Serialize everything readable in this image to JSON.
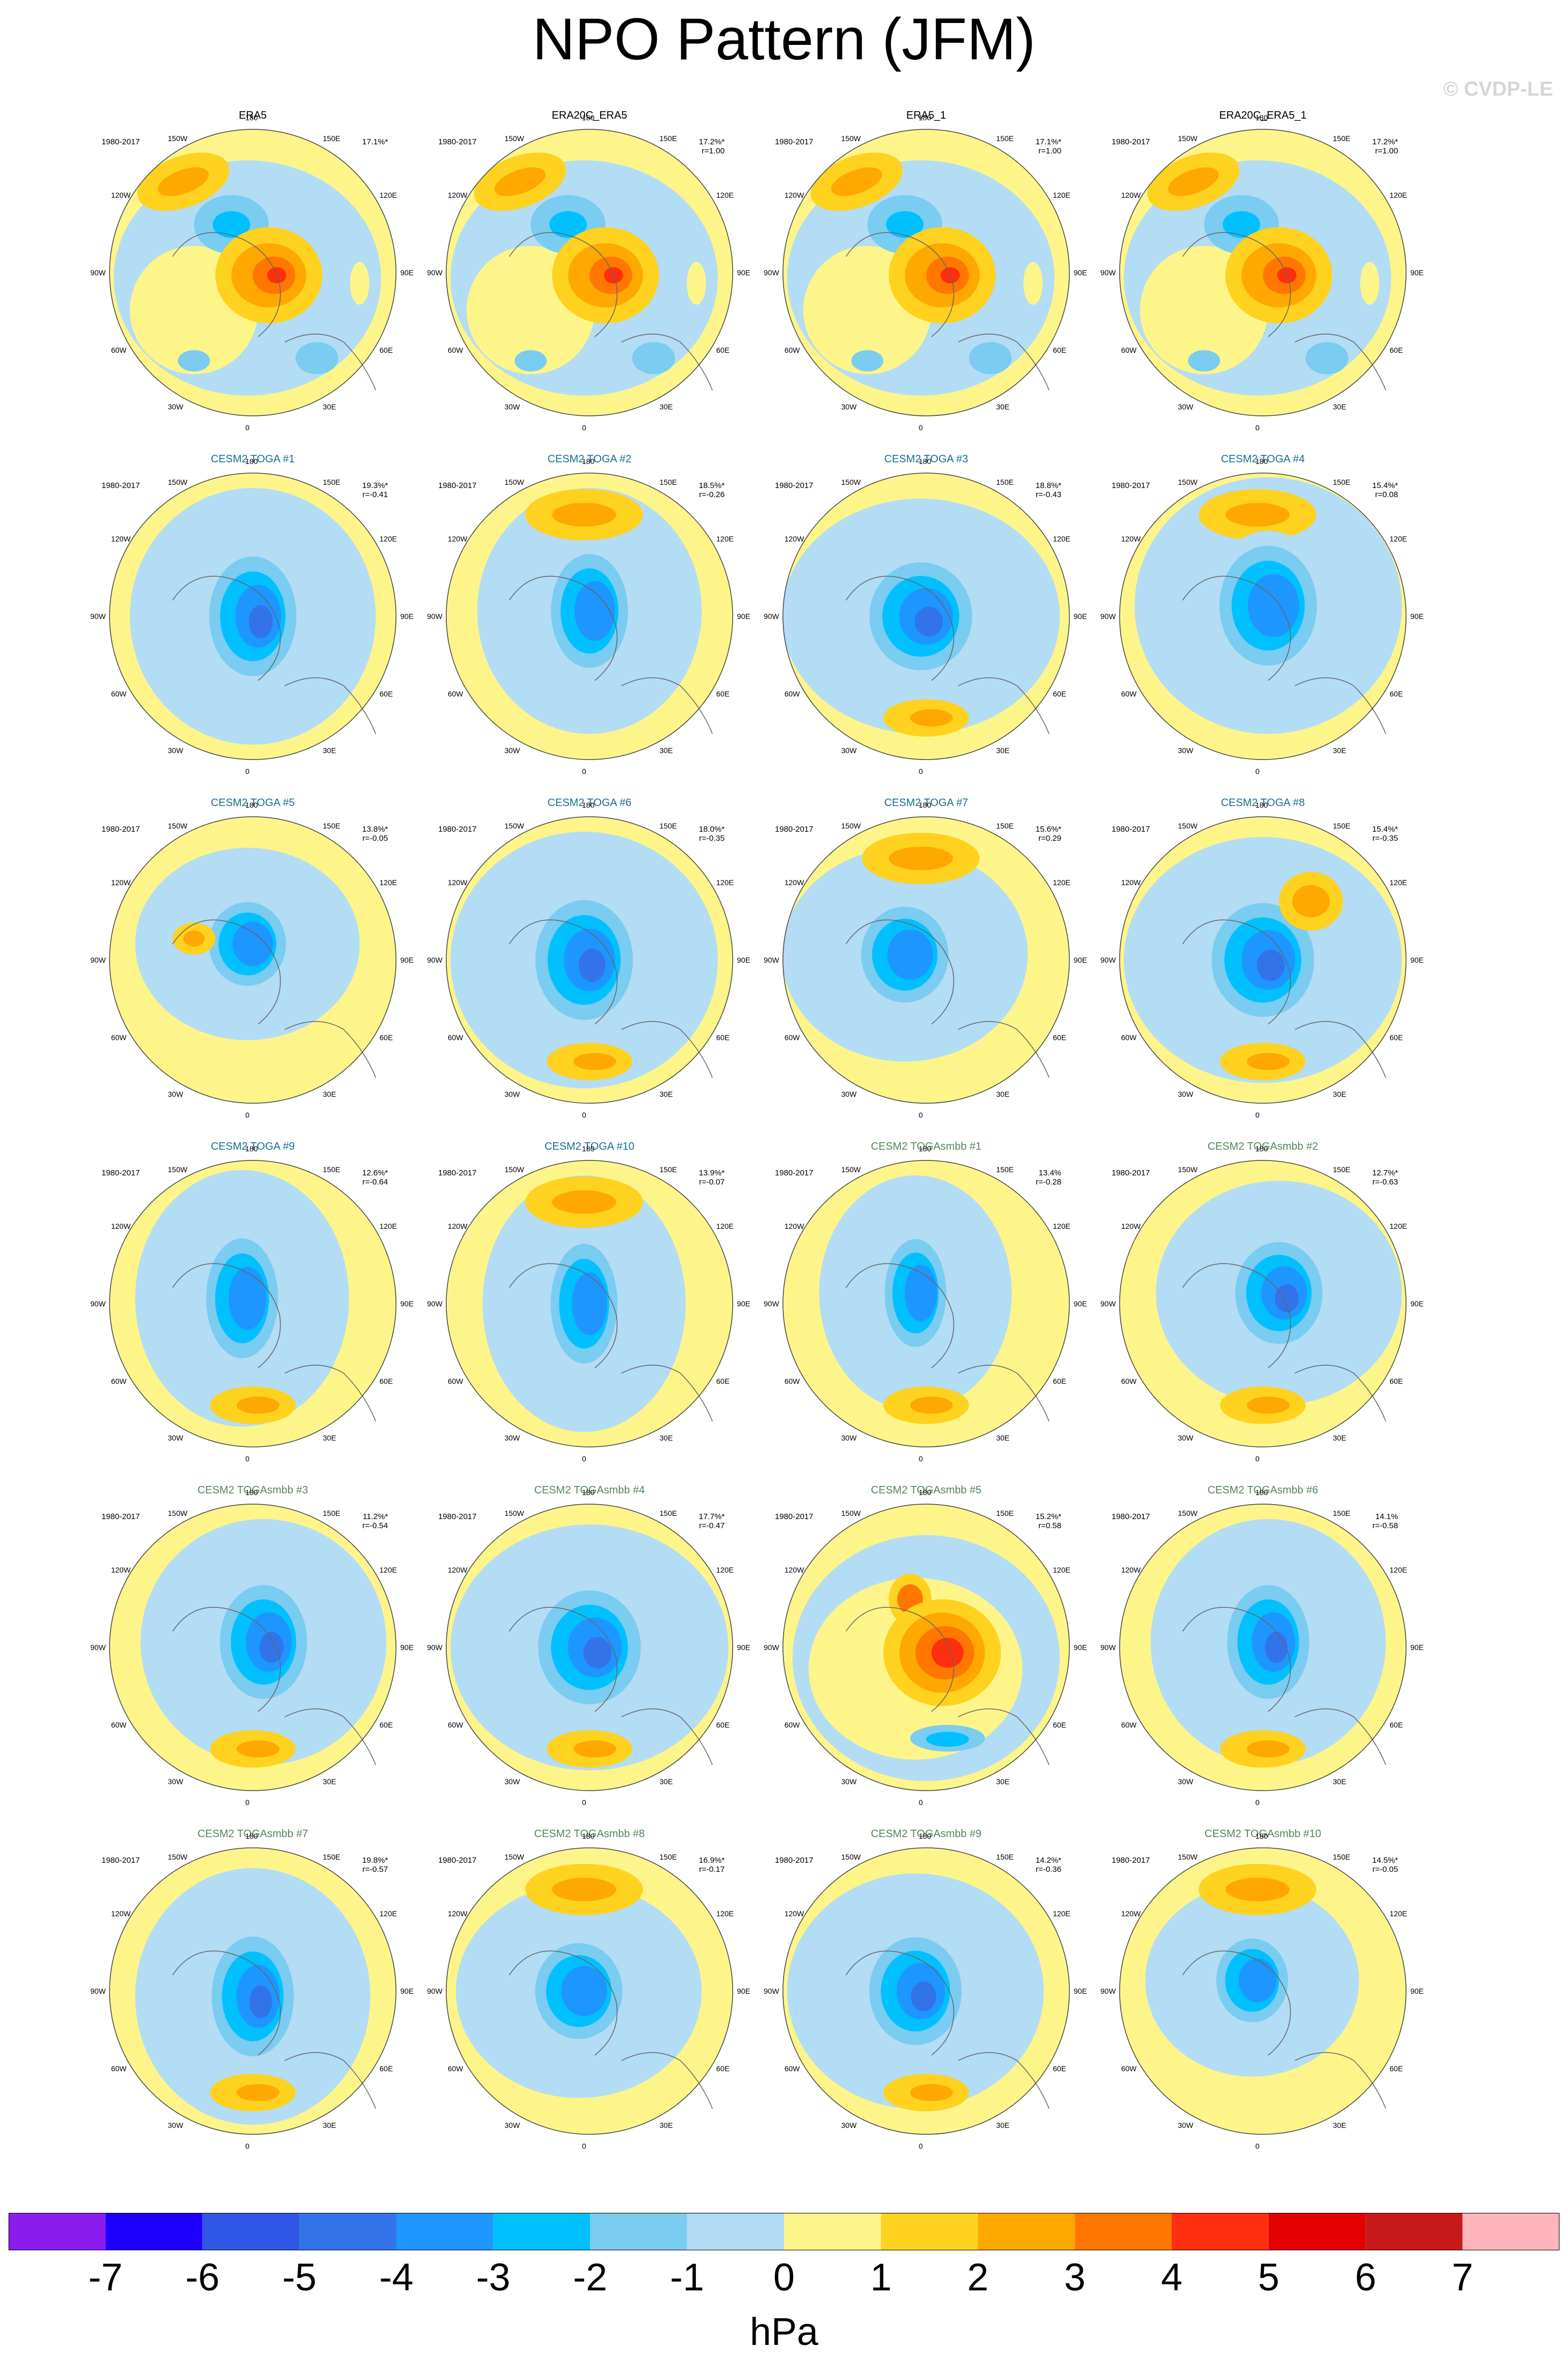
{
  "title": "NPO Pattern (JFM)",
  "watermark": "© CVDP-LE",
  "chart_data": {
    "type": "polar-contour-map-grid",
    "rows": 6,
    "cols": 4,
    "period": "1980-2017",
    "lon_labels": [
      "180",
      "150E",
      "120E",
      "90E",
      "60E",
      "30E",
      "0",
      "30W",
      "60W",
      "90W",
      "120W",
      "150W"
    ],
    "panels": [
      {
        "title": "ERA5",
        "group": "obs",
        "pct": "17.1%*",
        "r": ""
      },
      {
        "title": "ERA20C_ERA5",
        "group": "obs",
        "pct": "17.2%*",
        "r": "r=1.00"
      },
      {
        "title": "ERA5_1",
        "group": "obs",
        "pct": "17.1%*",
        "r": "r=1.00"
      },
      {
        "title": "ERA20C_ERA5_1",
        "group": "obs",
        "pct": "17.2%*",
        "r": "r=1.00"
      },
      {
        "title": "CESM2 TOGA #1",
        "group": "toga",
        "pct": "19.3%*",
        "r": "r=-0.41"
      },
      {
        "title": "CESM2 TOGA #2",
        "group": "toga",
        "pct": "18.5%*",
        "r": "r=-0.26"
      },
      {
        "title": "CESM2 TOGA #3",
        "group": "toga",
        "pct": "18.8%*",
        "r": "r=-0.43"
      },
      {
        "title": "CESM2 TOGA #4",
        "group": "toga",
        "pct": "15.4%*",
        "r": "r=0.08"
      },
      {
        "title": "CESM2 TOGA #5",
        "group": "toga",
        "pct": "13.8%*",
        "r": "r=-0.05"
      },
      {
        "title": "CESM2 TOGA #6",
        "group": "toga",
        "pct": "18.0%*",
        "r": "r=-0.35"
      },
      {
        "title": "CESM2 TOGA #7",
        "group": "toga",
        "pct": "15.6%*",
        "r": "r=0.29"
      },
      {
        "title": "CESM2 TOGA #8",
        "group": "toga",
        "pct": "15.4%*",
        "r": "r=-0.35"
      },
      {
        "title": "CESM2 TOGA #9",
        "group": "toga",
        "pct": "12.6%*",
        "r": "r=-0.64"
      },
      {
        "title": "CESM2 TOGA #10",
        "group": "toga",
        "pct": "13.9%*",
        "r": "r=-0.07"
      },
      {
        "title": "CESM2 TOGAsmbb #1",
        "group": "smbb",
        "pct": "13.4%",
        "r": "r=-0.28"
      },
      {
        "title": "CESM2 TOGAsmbb #2",
        "group": "smbb",
        "pct": "12.7%*",
        "r": "r=-0.63"
      },
      {
        "title": "CESM2 TOGAsmbb #3",
        "group": "smbb",
        "pct": "11.2%*",
        "r": "r=-0.54"
      },
      {
        "title": "CESM2 TOGAsmbb #4",
        "group": "smbb",
        "pct": "17.7%*",
        "r": "r=-0.47"
      },
      {
        "title": "CESM2 TOGAsmbb #5",
        "group": "smbb",
        "pct": "15.2%*",
        "r": "r=0.58"
      },
      {
        "title": "CESM2 TOGAsmbb #6",
        "group": "smbb",
        "pct": "14.1%",
        "r": "r=-0.58"
      },
      {
        "title": "CESM2 TOGAsmbb #7",
        "group": "smbb",
        "pct": "19.8%*",
        "r": "r=-0.57"
      },
      {
        "title": "CESM2 TOGAsmbb #8",
        "group": "smbb",
        "pct": "16.9%*",
        "r": "r=-0.17"
      },
      {
        "title": "CESM2 TOGAsmbb #9",
        "group": "smbb",
        "pct": "14.2%*",
        "r": "r=-0.36"
      },
      {
        "title": "CESM2 TOGAsmbb #10",
        "group": "smbb",
        "pct": "14.5%*",
        "r": "r=-0.05"
      }
    ],
    "colorbar": {
      "units": "hPa",
      "ticks": [
        "-7",
        "-6",
        "-5",
        "-4",
        "-3",
        "-2",
        "-1",
        "0",
        "1",
        "2",
        "3",
        "4",
        "5",
        "6",
        "7"
      ],
      "colors": [
        "#8a1cf0",
        "#1f00ff",
        "#3056e5",
        "#3273ea",
        "#1e96ff",
        "#00c0ff",
        "#7accf0",
        "#b3dcf5",
        "#fdf58a",
        "#ffd21f",
        "#ffa800",
        "#ff7700",
        "#ff2e0e",
        "#e40000",
        "#c81a1a",
        "#ffb5b9"
      ]
    }
  }
}
